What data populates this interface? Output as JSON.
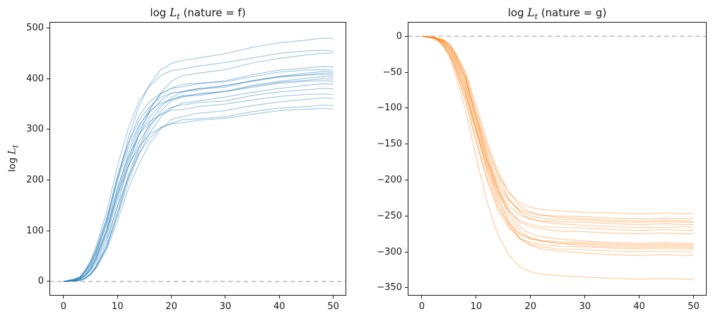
{
  "figure": {
    "background": "#ffffff"
  },
  "chart_data": [
    {
      "type": "line",
      "panel": "left",
      "title": {
        "prefix": "log ",
        "var": "L",
        "sub": "t",
        "rest": " (nature = f)"
      },
      "title_text": "log L_t (nature = f)",
      "ylabel": {
        "prefix": "log ",
        "var": "L",
        "sub": "t"
      },
      "ylabel_text": "log L_t",
      "xlabel": "",
      "line_color": "#1f77b4",
      "line_opacity": 0.42,
      "zero_line": {
        "y": 0,
        "color": "#b3b3b3",
        "style": "dashed"
      },
      "xlim": [
        -2.6,
        52.4
      ],
      "ylim": [
        -28,
        512
      ],
      "grid": false,
      "legend": "none",
      "xticks": [
        {
          "v": 0,
          "label": "0"
        },
        {
          "v": 10,
          "label": "10"
        },
        {
          "v": 20,
          "label": "20"
        },
        {
          "v": 30,
          "label": "30"
        },
        {
          "v": 40,
          "label": "40"
        },
        {
          "v": 50,
          "label": "50"
        }
      ],
      "yticks": [
        {
          "v": 0,
          "label": "0"
        },
        {
          "v": 100,
          "label": "100"
        },
        {
          "v": 200,
          "label": "200"
        },
        {
          "v": 300,
          "label": "300"
        },
        {
          "v": 400,
          "label": "400"
        },
        {
          "v": 500,
          "label": "500"
        }
      ],
      "x": [
        0,
        2,
        3,
        4,
        5,
        6,
        8,
        10,
        12,
        14,
        16,
        18,
        20,
        22,
        25,
        30,
        35,
        40,
        45,
        48,
        50
      ],
      "series": [
        [
          0,
          2,
          6,
          14,
          29,
          53,
          115,
          202,
          283,
          346,
          389,
          418,
          430,
          436,
          441,
          449,
          462,
          471,
          476,
          480,
          479
        ],
        [
          0,
          5,
          9,
          23,
          41,
          68,
          137,
          228,
          301,
          356,
          386,
          406,
          416,
          419,
          425,
          432,
          441,
          450,
          455,
          456,
          455
        ],
        [
          0,
          1,
          3,
          7,
          16,
          32,
          77,
          149,
          228,
          290,
          338,
          372,
          395,
          406,
          411,
          418,
          431,
          440,
          447,
          450,
          451
        ],
        [
          0,
          2,
          5,
          13,
          25,
          47,
          102,
          181,
          252,
          305,
          341,
          369,
          381,
          389,
          391,
          396,
          408,
          417,
          421,
          424,
          423
        ],
        [
          0,
          4,
          8,
          21,
          38,
          63,
          125,
          209,
          274,
          327,
          355,
          371,
          381,
          384,
          390,
          394,
          404,
          413,
          417,
          418,
          417
        ],
        [
          0,
          1,
          2,
          6,
          14,
          29,
          70,
          137,
          210,
          265,
          313,
          344,
          363,
          374,
          378,
          386,
          396,
          405,
          411,
          414,
          413
        ],
        [
          0,
          2,
          5,
          12,
          25,
          45,
          99,
          175,
          242,
          298,
          333,
          357,
          371,
          375,
          381,
          383,
          396,
          404,
          408,
          411,
          410
        ],
        [
          0,
          4,
          8,
          20,
          37,
          61,
          122,
          204,
          271,
          318,
          346,
          363,
          372,
          374,
          380,
          387,
          395,
          403,
          407,
          408,
          407
        ],
        [
          0,
          1,
          2,
          6,
          14,
          28,
          69,
          133,
          204,
          259,
          305,
          335,
          357,
          363,
          371,
          375,
          387,
          395,
          401,
          404,
          403
        ],
        [
          0,
          2,
          5,
          12,
          24,
          44,
          96,
          170,
          236,
          290,
          324,
          349,
          359,
          367,
          369,
          375,
          385,
          393,
          397,
          400,
          399
        ],
        [
          0,
          4,
          8,
          20,
          36,
          59,
          119,
          198,
          263,
          309,
          336,
          353,
          359,
          365,
          367,
          375,
          383,
          391,
          395,
          396,
          395
        ],
        [
          0,
          1,
          2,
          6,
          14,
          27,
          66,
          129,
          197,
          250,
          294,
          324,
          342,
          352,
          356,
          364,
          373,
          381,
          387,
          390,
          389
        ],
        [
          0,
          2,
          5,
          11,
          23,
          42,
          91,
          162,
          225,
          276,
          309,
          330,
          344,
          348,
          353,
          356,
          367,
          374,
          378,
          381,
          380
        ],
        [
          0,
          4,
          7,
          19,
          33,
          56,
          111,
          185,
          246,
          289,
          316,
          329,
          338,
          339,
          345,
          350,
          358,
          365,
          369,
          370,
          369
        ],
        [
          0,
          1,
          2,
          5,
          13,
          25,
          62,
          119,
          183,
          232,
          273,
          300,
          320,
          325,
          332,
          337,
          347,
          354,
          359,
          362,
          361
        ],
        [
          0,
          2,
          4,
          10,
          21,
          38,
          84,
          148,
          205,
          253,
          282,
          304,
          312,
          319,
          321,
          325,
          335,
          342,
          345,
          348,
          347
        ],
        [
          0,
          3,
          7,
          17,
          31,
          51,
          102,
          171,
          227,
          266,
          291,
          303,
          311,
          313,
          318,
          322,
          330,
          337,
          340,
          341,
          340
        ]
      ]
    },
    {
      "type": "line",
      "panel": "right",
      "title": {
        "prefix": "log ",
        "var": "L",
        "sub": "t",
        "rest": " (nature = g)"
      },
      "title_text": "log L_t (nature = g)",
      "ylabel": null,
      "xlabel": "",
      "line_color": "#ff7f0e",
      "line_opacity": 0.42,
      "zero_line": {
        "y": 0,
        "color": "#b3b3b3",
        "style": "dashed"
      },
      "xlim": [
        -2.6,
        52.4
      ],
      "ylim": [
        -361,
        20
      ],
      "grid": false,
      "legend": "none",
      "xticks": [
        {
          "v": 0,
          "label": "0"
        },
        {
          "v": 10,
          "label": "10"
        },
        {
          "v": 20,
          "label": "20"
        },
        {
          "v": 30,
          "label": "30"
        },
        {
          "v": 40,
          "label": "40"
        },
        {
          "v": 50,
          "label": "50"
        }
      ],
      "yticks": [
        {
          "v": 0,
          "label": "0"
        },
        {
          "v": -50,
          "label": "−50"
        },
        {
          "v": -100,
          "label": "−100"
        },
        {
          "v": -150,
          "label": "−150"
        },
        {
          "v": -200,
          "label": "−200"
        },
        {
          "v": -250,
          "label": "−250"
        },
        {
          "v": -300,
          "label": "−300"
        },
        {
          "v": -350,
          "label": "−350"
        }
      ],
      "x": [
        0,
        2,
        3,
        4,
        5,
        6,
        8,
        10,
        12,
        14,
        16,
        18,
        20,
        22,
        25,
        30,
        35,
        40,
        45,
        48,
        50
      ],
      "series": [
        [
          0,
          -1,
          -4,
          -7,
          -15,
          -27,
          -59,
          -109,
          -156,
          -193,
          -217,
          -232,
          -238,
          -241,
          -243,
          -245,
          -246,
          -247,
          -246,
          -247,
          -246
        ],
        [
          0,
          -2,
          -5,
          -11,
          -22,
          -37,
          -76,
          -127,
          -173,
          -208,
          -229,
          -241,
          -246,
          -249,
          -250,
          -251,
          -253,
          -254,
          -253,
          -254,
          -253
        ],
        [
          0,
          -1,
          -3,
          -5,
          -10,
          -21,
          -49,
          -98,
          -146,
          -188,
          -218,
          -236,
          -245,
          -249,
          -252,
          -254,
          -256,
          -257,
          -256,
          -257,
          -257
        ],
        [
          0,
          -1,
          -4,
          -8,
          -16,
          -28,
          -62,
          -114,
          -163,
          -202,
          -228,
          -243,
          -250,
          -253,
          -255,
          -256,
          -258,
          -259,
          -258,
          -259,
          -259
        ],
        [
          0,
          -2,
          -5,
          -12,
          -22,
          -38,
          -79,
          -131,
          -178,
          -215,
          -236,
          -249,
          -254,
          -257,
          -258,
          -259,
          -261,
          -262,
          -261,
          -262,
          -262
        ],
        [
          0,
          -1,
          -3,
          -5,
          -11,
          -21,
          -51,
          -101,
          -152,
          -194,
          -226,
          -245,
          -254,
          -258,
          -261,
          -263,
          -265,
          -266,
          -266,
          -265,
          -266
        ],
        [
          0,
          -2,
          -5,
          -12,
          -23,
          -39,
          -81,
          -135,
          -184,
          -221,
          -243,
          -257,
          -262,
          -265,
          -266,
          -267,
          -269,
          -270,
          -269,
          -270,
          -270
        ],
        [
          0,
          -1,
          -4,
          -8,
          -17,
          -30,
          -66,
          -121,
          -173,
          -215,
          -242,
          -259,
          -265,
          -268,
          -271,
          -272,
          -274,
          -275,
          -274,
          -275,
          -275
        ],
        [
          0,
          -1,
          -3,
          -6,
          -12,
          -23,
          -55,
          -109,
          -164,
          -210,
          -245,
          -265,
          -275,
          -279,
          -282,
          -285,
          -287,
          -288,
          -287,
          -288,
          -288
        ],
        [
          0,
          -2,
          -6,
          -13,
          -25,
          -42,
          -87,
          -145,
          -197,
          -238,
          -261,
          -276,
          -281,
          -284,
          -286,
          -287,
          -289,
          -290,
          -289,
          -290,
          -290
        ],
        [
          0,
          -1,
          -4,
          -9,
          -18,
          -32,
          -70,
          -128,
          -184,
          -228,
          -257,
          -274,
          -282,
          -285,
          -288,
          -289,
          -291,
          -292,
          -291,
          -292,
          -292
        ],
        [
          0,
          -1,
          -3,
          -6,
          -12,
          -24,
          -56,
          -112,
          -168,
          -215,
          -250,
          -270,
          -281,
          -285,
          -288,
          -291,
          -293,
          -294,
          -293,
          -294,
          -294
        ],
        [
          0,
          -2,
          -6,
          -13,
          -25,
          -43,
          -89,
          -148,
          -201,
          -243,
          -266,
          -281,
          -287,
          -290,
          -292,
          -293,
          -295,
          -296,
          -295,
          -296,
          -296
        ],
        [
          0,
          -2,
          -5,
          -9,
          -18,
          -33,
          -72,
          -132,
          -189,
          -234,
          -264,
          -282,
          -290,
          -293,
          -296,
          -297,
          -299,
          -300,
          -299,
          -300,
          -300
        ],
        [
          0,
          -1,
          -3,
          -6,
          -12,
          -24,
          -58,
          -116,
          -174,
          -223,
          -259,
          -281,
          -291,
          -296,
          -299,
          -302,
          -304,
          -305,
          -304,
          -305,
          -305
        ],
        [
          0,
          -3,
          -7,
          -15,
          -29,
          -49,
          -101,
          -169,
          -230,
          -277,
          -304,
          -321,
          -328,
          -331,
          -333,
          -335,
          -337,
          -338,
          -337,
          -338,
          -338
        ]
      ]
    }
  ]
}
